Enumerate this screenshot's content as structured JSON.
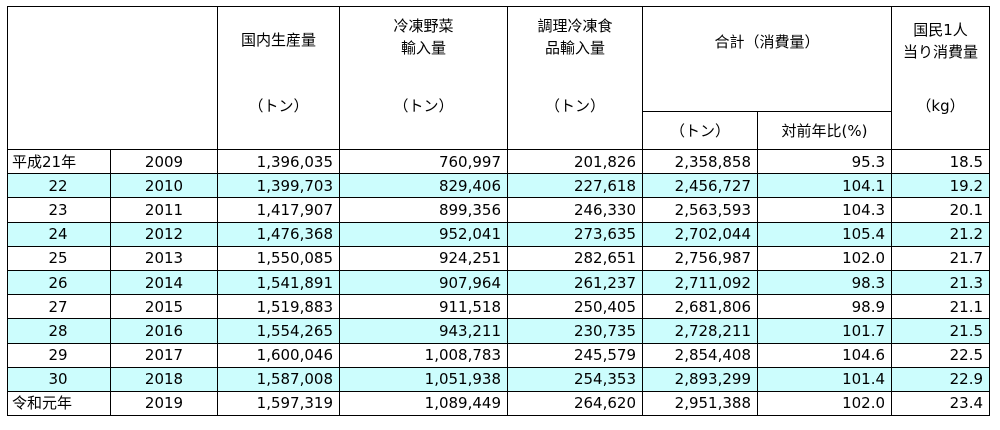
{
  "headers": {
    "domestic": "国内生産量",
    "frozen_veg_line1": "冷凍野菜",
    "frozen_veg_line2": "輸入量",
    "prepared_line1": "調理冷凍食",
    "prepared_line2": "品輸入量",
    "total": "合計（消費量）",
    "per_capita_line1": "国民1人",
    "per_capita_line2": "当り消費量",
    "unit_ton": "（トン）",
    "yoy": "対前年比(%)",
    "unit_kg": "（kg）"
  },
  "rows": [
    {
      "era": "平成21年",
      "year": "2009",
      "domestic": "1,396,035",
      "frozen_veg": "760,997",
      "prepared": "201,826",
      "total": "2,358,858",
      "yoy": "95.3",
      "per_capita": "18.5"
    },
    {
      "era": "22",
      "year": "2010",
      "domestic": "1,399,703",
      "frozen_veg": "829,406",
      "prepared": "227,618",
      "total": "2,456,727",
      "yoy": "104.1",
      "per_capita": "19.2"
    },
    {
      "era": "23",
      "year": "2011",
      "domestic": "1,417,907",
      "frozen_veg": "899,356",
      "prepared": "246,330",
      "total": "2,563,593",
      "yoy": "104.3",
      "per_capita": "20.1"
    },
    {
      "era": "24",
      "year": "2012",
      "domestic": "1,476,368",
      "frozen_veg": "952,041",
      "prepared": "273,635",
      "total": "2,702,044",
      "yoy": "105.4",
      "per_capita": "21.2"
    },
    {
      "era": "25",
      "year": "2013",
      "domestic": "1,550,085",
      "frozen_veg": "924,251",
      "prepared": "282,651",
      "total": "2,756,987",
      "yoy": "102.0",
      "per_capita": "21.7"
    },
    {
      "era": "26",
      "year": "2014",
      "domestic": "1,541,891",
      "frozen_veg": "907,964",
      "prepared": "261,237",
      "total": "2,711,092",
      "yoy": "98.3",
      "per_capita": "21.3"
    },
    {
      "era": "27",
      "year": "2015",
      "domestic": "1,519,883",
      "frozen_veg": "911,518",
      "prepared": "250,405",
      "total": "2,681,806",
      "yoy": "98.9",
      "per_capita": "21.1"
    },
    {
      "era": "28",
      "year": "2016",
      "domestic": "1,554,265",
      "frozen_veg": "943,211",
      "prepared": "230,735",
      "total": "2,728,211",
      "yoy": "101.7",
      "per_capita": "21.5"
    },
    {
      "era": "29",
      "year": "2017",
      "domestic": "1,600,046",
      "frozen_veg": "1,008,783",
      "prepared": "245,579",
      "total": "2,854,408",
      "yoy": "104.6",
      "per_capita": "22.5"
    },
    {
      "era": "30",
      "year": "2018",
      "domestic": "1,587,008",
      "frozen_veg": "1,051,938",
      "prepared": "254,353",
      "total": "2,893,299",
      "yoy": "101.4",
      "per_capita": "22.9"
    },
    {
      "era": "令和元年",
      "year": "2019",
      "domestic": "1,597,319",
      "frozen_veg": "1,089,449",
      "prepared": "264,620",
      "total": "2,951,388",
      "yoy": "102.0",
      "per_capita": "23.4"
    }
  ],
  "colors": {
    "row_shade": "#ccfdfd",
    "border": "#000000"
  }
}
